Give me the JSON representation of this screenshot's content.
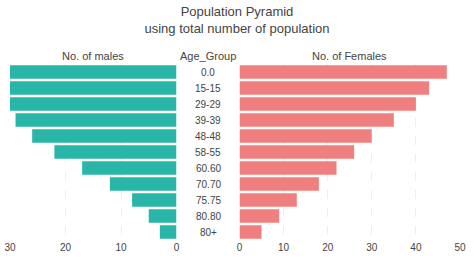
{
  "chart_data": {
    "type": "bar",
    "orientation": "horizontal",
    "title": "Population Pyramid\nusing total number of population",
    "ylabel": "Age_Group",
    "categories": [
      "80+",
      "80.80",
      "75.75",
      "70.70",
      "60.60",
      "58-55",
      "48-48",
      "39-39",
      "29-29",
      "15-15",
      "0.0"
    ],
    "series": [
      {
        "name": "No. of males",
        "color": "#29b5a8",
        "values": [
          3,
          5,
          8,
          12,
          17,
          22,
          26,
          29,
          30,
          30,
          30
        ],
        "xlim": [
          30,
          0
        ],
        "xticks": [
          30,
          20,
          10,
          0
        ]
      },
      {
        "name": "No. of Females",
        "color": "#f08080",
        "values": [
          5,
          9,
          13,
          18,
          22,
          26,
          30,
          35,
          40,
          43,
          47
        ],
        "xlim": [
          0,
          50
        ],
        "xticks": [
          0,
          10,
          20,
          30,
          40,
          50
        ]
      }
    ],
    "grid": true
  }
}
